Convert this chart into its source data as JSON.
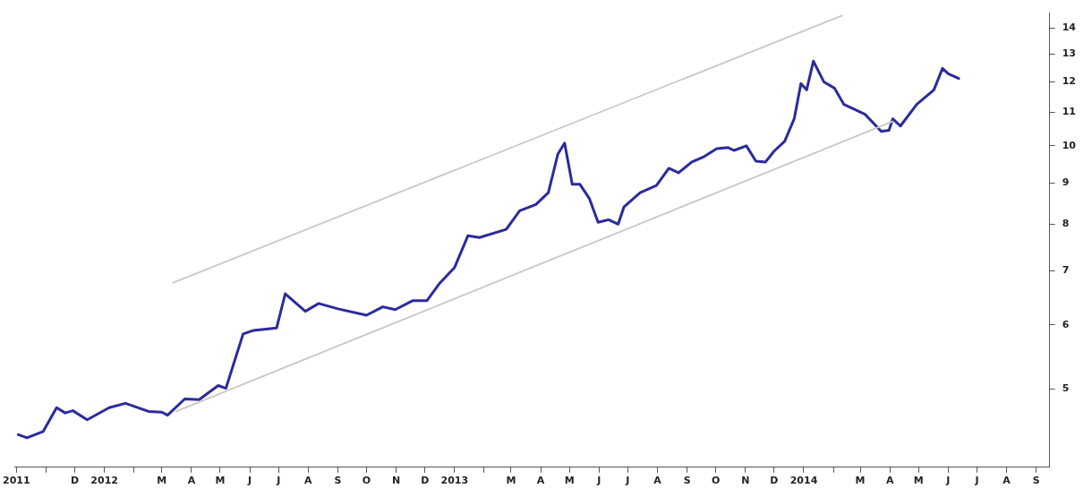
{
  "chart_data": {
    "type": "line",
    "log": "y",
    "grid": false,
    "legend": false,
    "marker": "none",
    "line_style": "solid",
    "xlim": [
      "2011-09-29",
      "2014-09-15"
    ],
    "xticks": [
      {
        "value": "2011-10-01",
        "label": "2011"
      },
      {
        "value": "2011-11-01",
        "label": null
      },
      {
        "value": "2011-12-01",
        "label": "D"
      },
      {
        "value": "2012-01-01",
        "label": "2012"
      },
      {
        "value": "2012-02-01",
        "label": null
      },
      {
        "value": "2012-03-01",
        "label": "M"
      },
      {
        "value": "2012-04-01",
        "label": "A"
      },
      {
        "value": "2012-05-01",
        "label": "M"
      },
      {
        "value": "2012-06-01",
        "label": "J"
      },
      {
        "value": "2012-07-01",
        "label": "J"
      },
      {
        "value": "2012-08-01",
        "label": "A"
      },
      {
        "value": "2012-09-01",
        "label": "S"
      },
      {
        "value": "2012-10-01",
        "label": "O"
      },
      {
        "value": "2012-11-01",
        "label": "N"
      },
      {
        "value": "2012-12-01",
        "label": "D"
      },
      {
        "value": "2013-01-01",
        "label": "2013"
      },
      {
        "value": "2013-02-01",
        "label": null
      },
      {
        "value": "2013-03-01",
        "label": "M"
      },
      {
        "value": "2013-04-01",
        "label": "A"
      },
      {
        "value": "2013-05-01",
        "label": "M"
      },
      {
        "value": "2013-06-01",
        "label": "J"
      },
      {
        "value": "2013-07-01",
        "label": "J"
      },
      {
        "value": "2013-08-01",
        "label": "A"
      },
      {
        "value": "2013-09-01",
        "label": "S"
      },
      {
        "value": "2013-10-01",
        "label": "O"
      },
      {
        "value": "2013-11-01",
        "label": "N"
      },
      {
        "value": "2013-12-01",
        "label": "D"
      },
      {
        "value": "2014-01-01",
        "label": "2014"
      },
      {
        "value": "2014-02-01",
        "label": null
      },
      {
        "value": "2014-03-01",
        "label": "M"
      },
      {
        "value": "2014-04-01",
        "label": "A"
      },
      {
        "value": "2014-05-01",
        "label": "M"
      },
      {
        "value": "2014-06-01",
        "label": "J"
      },
      {
        "value": "2014-07-01",
        "label": "J"
      },
      {
        "value": "2014-08-01",
        "label": "A"
      },
      {
        "value": "2014-09-01",
        "label": "S"
      }
    ],
    "ylim": [
      4,
      14.6
    ],
    "yticks": [
      5,
      6,
      7,
      8,
      9,
      10,
      11,
      12,
      13,
      14
    ],
    "series": [
      {
        "color": "#c8c8c8",
        "x": [
          "2012-03-13",
          "2014-02-10"
        ],
        "values": [
          6.77,
          14.5
        ]
      },
      {
        "color": "#c8c8c8",
        "x": [
          "2012-03-16",
          "2014-04-04"
        ],
        "values": [
          4.69,
          10.72
        ]
      },
      {
        "color": "#2b2b9c",
        "x": [
          "2011-10-03",
          "2011-10-12",
          "2011-10-29",
          "2011-11-12",
          "2011-11-21",
          "2011-11-29",
          "2011-12-14",
          "2012-01-06",
          "2012-01-23",
          "2012-02-16",
          "2012-03-01",
          "2012-03-07",
          "2012-03-25",
          "2012-04-09",
          "2012-04-29",
          "2012-05-07",
          "2012-05-25",
          "2012-06-05",
          "2012-06-29",
          "2012-07-08",
          "2012-07-29",
          "2012-08-12",
          "2012-09-02",
          "2012-10-01",
          "2012-10-18",
          "2012-10-31",
          "2012-11-18",
          "2012-12-03",
          "2012-12-16",
          "2013-01-01",
          "2013-01-15",
          "2013-01-27",
          "2013-02-24",
          "2013-03-10",
          "2013-03-27",
          "2013-04-09",
          "2013-04-19",
          "2013-04-26",
          "2013-05-04",
          "2013-05-12",
          "2013-05-22",
          "2013-05-31",
          "2013-06-11",
          "2013-06-21",
          "2013-06-27",
          "2013-07-14",
          "2013-07-31",
          "2013-08-13",
          "2013-08-23",
          "2013-09-06",
          "2013-09-19",
          "2013-10-02",
          "2013-10-14",
          "2013-10-20",
          "2013-11-02",
          "2013-11-12",
          "2013-11-22",
          "2013-12-01",
          "2013-12-12",
          "2013-12-22",
          "2013-12-29",
          "2014-01-04",
          "2014-01-11",
          "2014-01-22",
          "2014-02-02",
          "2014-02-12",
          "2014-03-06",
          "2014-03-23",
          "2014-03-31",
          "2014-04-04",
          "2014-04-12",
          "2014-04-29",
          "2014-05-17",
          "2014-05-26",
          "2014-06-01",
          "2014-06-12"
        ],
        "values": [
          4.39,
          4.35,
          4.43,
          4.74,
          4.67,
          4.7,
          4.58,
          4.74,
          4.8,
          4.69,
          4.68,
          4.64,
          4.86,
          4.85,
          5.05,
          5.01,
          5.85,
          5.91,
          5.95,
          6.56,
          6.24,
          6.38,
          6.28,
          6.17,
          6.32,
          6.27,
          6.43,
          6.43,
          6.75,
          7.07,
          7.74,
          7.7,
          7.88,
          8.31,
          8.46,
          8.75,
          9.77,
          10.08,
          8.96,
          8.96,
          8.6,
          8.04,
          8.1,
          8.0,
          8.4,
          8.75,
          8.93,
          9.38,
          9.26,
          9.55,
          9.7,
          9.92,
          9.95,
          9.87,
          10.0,
          9.57,
          9.55,
          9.85,
          10.13,
          10.8,
          11.94,
          11.73,
          12.73,
          12.0,
          11.79,
          11.25,
          10.94,
          10.42,
          10.45,
          10.8,
          10.58,
          11.25,
          11.73,
          12.47,
          12.28,
          12.12
        ]
      }
    ]
  }
}
